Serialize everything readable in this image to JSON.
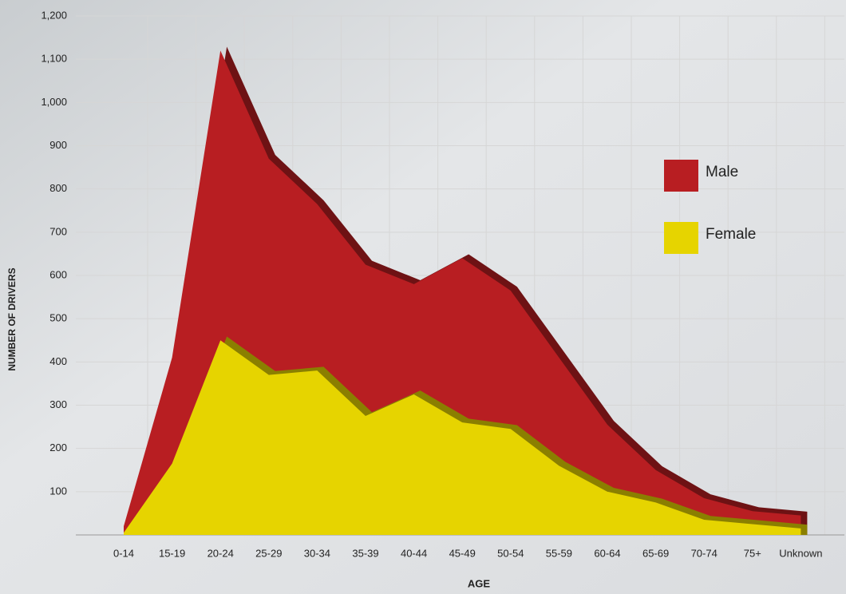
{
  "chart_data": {
    "type": "area",
    "x_label": "AGE",
    "y_label": "NUMBER OF DRIVERS",
    "categories": [
      "0-14",
      "15-19",
      "20-24",
      "25-29",
      "30-34",
      "35-39",
      "40-44",
      "45-49",
      "50-54",
      "55-59",
      "60-64",
      "65-69",
      "70-74",
      "75+",
      "Unknown"
    ],
    "series": [
      {
        "name": "Male",
        "color": "#b81e22",
        "values": [
          20,
          410,
          1120,
          870,
          765,
          625,
          580,
          640,
          565,
          410,
          255,
          150,
          85,
          55,
          45
        ]
      },
      {
        "name": "Female",
        "color": "#e6d400",
        "values": [
          5,
          165,
          450,
          370,
          380,
          275,
          325,
          260,
          245,
          160,
          100,
          75,
          35,
          25,
          15
        ]
      }
    ],
    "ylim": [
      0,
      1200
    ],
    "yticks": [
      100,
      200,
      300,
      400,
      500,
      600,
      700,
      800,
      900,
      {
        "value": 1000,
        "label": "1,000"
      },
      {
        "value": 1100,
        "label": "1,100"
      },
      {
        "value": 1200,
        "label": "1,200"
      }
    ],
    "grid": true
  }
}
